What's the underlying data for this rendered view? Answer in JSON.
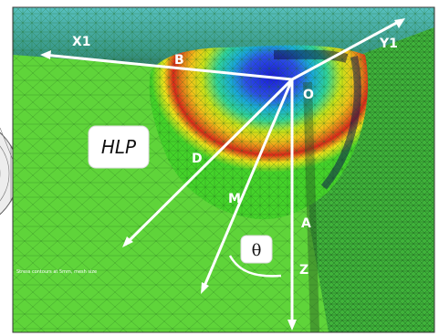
{
  "diagram": {
    "labels": {
      "x1": "X1",
      "y1": "Y1",
      "b": "B",
      "o": "O",
      "d": "D",
      "m": "M",
      "a": "A",
      "z": "Z",
      "hlp": "HLP",
      "theta": "θ"
    },
    "caption_text": "Stress contours at 5mm, mesh size"
  }
}
